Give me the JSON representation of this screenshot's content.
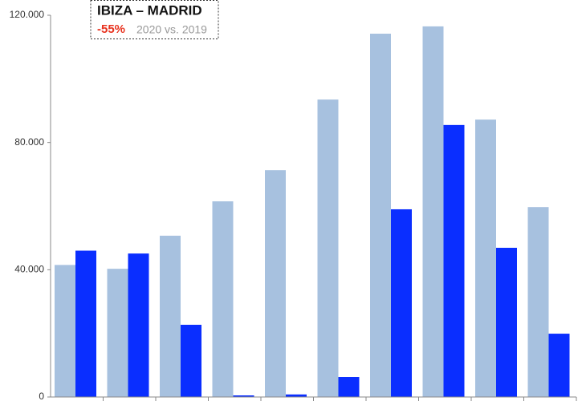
{
  "chart_data": {
    "type": "bar",
    "title": "IBIZA – MADRID",
    "annotation": {
      "change": "-55%",
      "comparison": "2020 vs. 2019"
    },
    "categories": [
      null,
      null,
      null,
      null,
      null,
      null,
      null,
      null,
      null,
      null
    ],
    "series": [
      {
        "color": "#a7c1df",
        "values": [
          41500,
          40300,
          50700,
          61500,
          71300,
          93500,
          114200,
          116500,
          87200,
          59700
        ]
      },
      {
        "color": "#0a2eff",
        "values": [
          46000,
          45100,
          22700,
          500,
          800,
          6300,
          59000,
          85500,
          46900,
          19900
        ]
      }
    ],
    "ylim": [
      0,
      120000
    ],
    "yticks": [
      0,
      {
        "value": 40000,
        "label": "40.000"
      },
      {
        "value": 80000,
        "label": "80.000"
      },
      {
        "value": 120000,
        "label": "120.000"
      }
    ],
    "grid": false
  }
}
